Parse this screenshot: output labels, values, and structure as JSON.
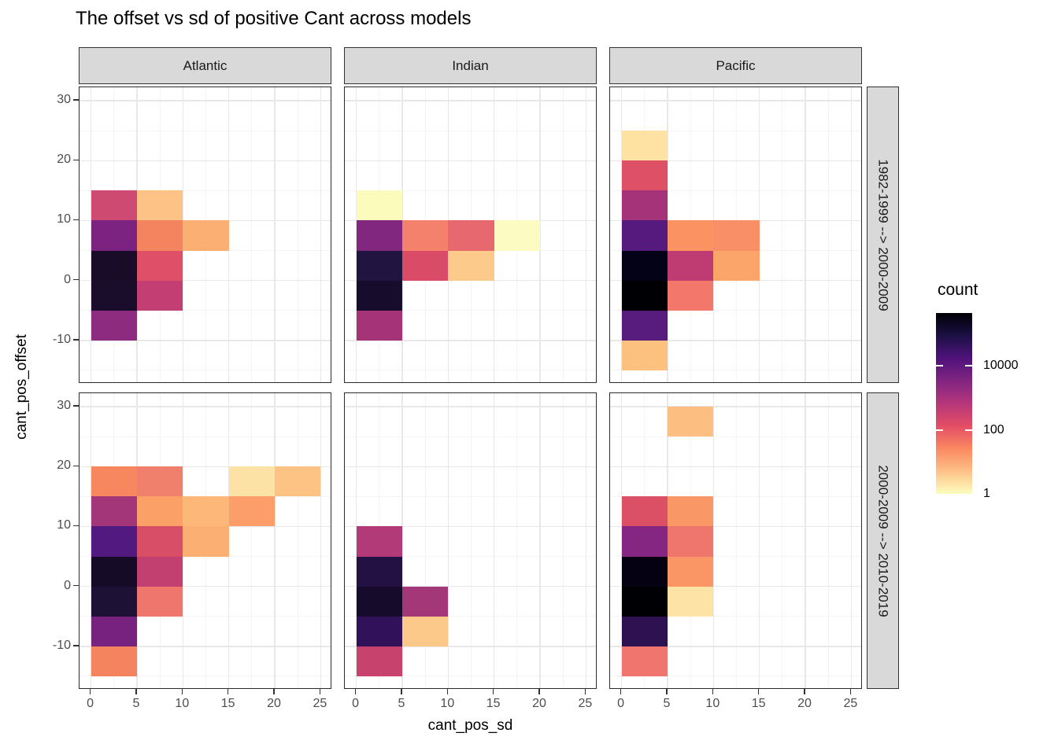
{
  "title": "The offset vs sd of positive Cant across models",
  "axes": {
    "x": {
      "title": "cant_pos_sd",
      "tick_labels": [
        "0",
        "5",
        "10",
        "15",
        "20",
        "25"
      ],
      "tick_values": [
        0,
        5,
        10,
        15,
        20,
        25
      ],
      "range": [
        -1.25,
        26.25
      ],
      "minor_ticks": [
        2.5,
        7.5,
        12.5,
        17.5,
        22.5
      ]
    },
    "y": {
      "title": "cant_pos_offset",
      "tick_labels": [
        "30",
        "20",
        "10",
        "0",
        "-10"
      ],
      "tick_values": [
        30,
        20,
        10,
        0,
        -10
      ],
      "range": [
        -17.25,
        32.25
      ],
      "minor_ticks": [
        -15,
        -5,
        5,
        15,
        25
      ]
    }
  },
  "facets": {
    "columns": [
      "Atlantic",
      "Indian",
      "Pacific"
    ],
    "rows": [
      "1982-1999 --> 2000-2009",
      "2000-2009 --> 2010-2019"
    ]
  },
  "legend": {
    "title": "count",
    "labels": [
      "10000",
      "100",
      "1"
    ],
    "tick_values": [
      10000,
      100,
      1
    ],
    "log_max_exponent": 5.65,
    "colors": {
      "scale_dark": "#000004",
      "scale_light": "#fcfdbf"
    }
  },
  "chart_data": {
    "type": "heatmap",
    "title": "The offset vs sd of positive Cant across models",
    "xlabel": "cant_pos_sd",
    "ylabel": "cant_pos_offset",
    "bin_size": 5,
    "x_ticks": [
      0,
      5,
      10,
      15,
      20,
      25
    ],
    "y_ticks": [
      30,
      20,
      10,
      0,
      -10
    ],
    "color_scale": {
      "palette": "magma-reversed",
      "transform": "log10",
      "breaks": [
        1,
        100,
        10000
      ],
      "legend_title": "count"
    },
    "grid": "major-and-minor",
    "legend_position": "right",
    "panels": [
      {
        "column": "Atlantic",
        "row": "1982-1999 --> 2000-2009",
        "tiles": [
          {
            "x": 0,
            "y": 10,
            "color": "#ce4a72",
            "count_est": 300
          },
          {
            "x": 5,
            "y": 10,
            "color": "#fdc285",
            "count_est": 6
          },
          {
            "x": 0,
            "y": 5,
            "color": "#7c2382",
            "count_est": 4500
          },
          {
            "x": 5,
            "y": 5,
            "color": "#f4835f",
            "count_est": 30
          },
          {
            "x": 10,
            "y": 5,
            "color": "#fcaf72",
            "count_est": 10
          },
          {
            "x": 0,
            "y": 0,
            "color": "#180c29",
            "count_est": 150000
          },
          {
            "x": 5,
            "y": 0,
            "color": "#df4f68",
            "count_est": 160
          },
          {
            "x": 0,
            "y": -5,
            "color": "#1a0d2b",
            "count_est": 140000
          },
          {
            "x": 5,
            "y": -5,
            "color": "#c33e72",
            "count_est": 450
          },
          {
            "x": 0,
            "y": -10,
            "color": "#8d2b81",
            "count_est": 2500
          }
        ]
      },
      {
        "column": "Indian",
        "row": "1982-1999 --> 2000-2009",
        "tiles": [
          {
            "x": 0,
            "y": 10,
            "color": "#fbfbbc",
            "count_est": 1
          },
          {
            "x": 0,
            "y": 5,
            "color": "#812780",
            "count_est": 3500
          },
          {
            "x": 5,
            "y": 5,
            "color": "#f3816b",
            "count_est": 35
          },
          {
            "x": 10,
            "y": 5,
            "color": "#e86870",
            "count_est": 85
          },
          {
            "x": 15,
            "y": 5,
            "color": "#fcfcc2",
            "count_est": 1
          },
          {
            "x": 0,
            "y": 0,
            "color": "#221440",
            "count_est": 75000
          },
          {
            "x": 5,
            "y": 0,
            "color": "#da4b68",
            "count_est": 190
          },
          {
            "x": 10,
            "y": 0,
            "color": "#fccb8c",
            "count_est": 5
          },
          {
            "x": 0,
            "y": -5,
            "color": "#170c2b",
            "count_est": 150000
          },
          {
            "x": 0,
            "y": -10,
            "color": "#a43378",
            "count_est": 1100
          }
        ]
      },
      {
        "column": "Pacific",
        "row": "1982-1999 --> 2000-2009",
        "tiles": [
          {
            "x": 0,
            "y": 20,
            "color": "#fde2a3",
            "count_est": 2
          },
          {
            "x": 0,
            "y": 15,
            "color": "#dd5066",
            "count_est": 180
          },
          {
            "x": 0,
            "y": 10,
            "color": "#a43379",
            "count_est": 1100
          },
          {
            "x": 0,
            "y": 5,
            "color": "#561a7e",
            "count_est": 14000
          },
          {
            "x": 5,
            "y": 5,
            "color": "#fa9261",
            "count_est": 18
          },
          {
            "x": 10,
            "y": 5,
            "color": "#f98f66",
            "count_est": 20
          },
          {
            "x": 0,
            "y": 0,
            "color": "#030217",
            "count_est": 310000
          },
          {
            "x": 5,
            "y": 0,
            "color": "#be3c71",
            "count_est": 500
          },
          {
            "x": 10,
            "y": 0,
            "color": "#fca56b",
            "count_est": 11
          },
          {
            "x": 0,
            "y": -5,
            "color": "#000004",
            "count_est": 450000
          },
          {
            "x": 5,
            "y": -5,
            "color": "#f3786b",
            "count_est": 40
          },
          {
            "x": 0,
            "y": -10,
            "color": "#571c7e",
            "count_est": 13000
          },
          {
            "x": 0,
            "y": -15,
            "color": "#fdc17f",
            "count_est": 6
          }
        ]
      },
      {
        "column": "Atlantic",
        "row": "2000-2009 --> 2010-2019",
        "tiles": [
          {
            "x": 0,
            "y": 15,
            "color": "#f6875f",
            "count_est": 27
          },
          {
            "x": 5,
            "y": 15,
            "color": "#f0806c",
            "count_est": 38
          },
          {
            "x": 15,
            "y": 15,
            "color": "#fde2a6",
            "count_est": 2
          },
          {
            "x": 20,
            "y": 15,
            "color": "#fdc385",
            "count_est": 6
          },
          {
            "x": 0,
            "y": 10,
            "color": "#a33579",
            "count_est": 1150
          },
          {
            "x": 5,
            "y": 10,
            "color": "#fba167",
            "count_est": 13
          },
          {
            "x": 10,
            "y": 10,
            "color": "#fdb779",
            "count_est": 8
          },
          {
            "x": 15,
            "y": 10,
            "color": "#fb9e69",
            "count_est": 14
          },
          {
            "x": 0,
            "y": 5,
            "color": "#521980",
            "count_est": 15000
          },
          {
            "x": 5,
            "y": 5,
            "color": "#d94e67",
            "count_est": 200
          },
          {
            "x": 10,
            "y": 5,
            "color": "#fcaf73",
            "count_est": 10
          },
          {
            "x": 0,
            "y": 0,
            "color": "#160b27",
            "count_est": 160000
          },
          {
            "x": 5,
            "y": 0,
            "color": "#c2406f",
            "count_est": 480
          },
          {
            "x": 0,
            "y": -5,
            "color": "#1d1135",
            "count_est": 120000
          },
          {
            "x": 5,
            "y": -5,
            "color": "#ef766d",
            "count_est": 42
          },
          {
            "x": 0,
            "y": -10,
            "color": "#77227f",
            "count_est": 5200
          },
          {
            "x": 0,
            "y": -15,
            "color": "#f3845f",
            "count_est": 30
          }
        ]
      },
      {
        "column": "Indian",
        "row": "2000-2009 --> 2010-2019",
        "tiles": [
          {
            "x": 0,
            "y": 5,
            "color": "#b23a78",
            "count_est": 740
          },
          {
            "x": 0,
            "y": 0,
            "color": "#221142",
            "count_est": 75000
          },
          {
            "x": 0,
            "y": -5,
            "color": "#160b2a",
            "count_est": 160000
          },
          {
            "x": 5,
            "y": -5,
            "color": "#a33778",
            "count_est": 1100
          },
          {
            "x": 0,
            "y": -10,
            "color": "#31125a",
            "count_est": 45000
          },
          {
            "x": 5,
            "y": -10,
            "color": "#fcc98a",
            "count_est": 5
          },
          {
            "x": 0,
            "y": -15,
            "color": "#c8426e",
            "count_est": 380
          }
        ]
      },
      {
        "column": "Pacific",
        "row": "2000-2009 --> 2010-2019",
        "tiles": [
          {
            "x": 5,
            "y": 25,
            "color": "#fdbe81",
            "count_est": 6
          },
          {
            "x": 0,
            "y": 10,
            "color": "#dc5066",
            "count_est": 180
          },
          {
            "x": 5,
            "y": 10,
            "color": "#fa9766",
            "count_est": 17
          },
          {
            "x": 0,
            "y": 5,
            "color": "#852782",
            "count_est": 3000
          },
          {
            "x": 5,
            "y": 5,
            "color": "#ef766d",
            "count_est": 42
          },
          {
            "x": 0,
            "y": 0,
            "color": "#050112",
            "count_est": 330000
          },
          {
            "x": 5,
            "y": 0,
            "color": "#fa9566",
            "count_est": 18
          },
          {
            "x": 0,
            "y": -5,
            "color": "#000004",
            "count_est": 450000
          },
          {
            "x": 5,
            "y": -5,
            "color": "#fde3a5",
            "count_est": 2
          },
          {
            "x": 0,
            "y": -10,
            "color": "#2d1150",
            "count_est": 56000
          },
          {
            "x": 0,
            "y": -15,
            "color": "#f0756f",
            "count_est": 42
          }
        ]
      }
    ]
  }
}
